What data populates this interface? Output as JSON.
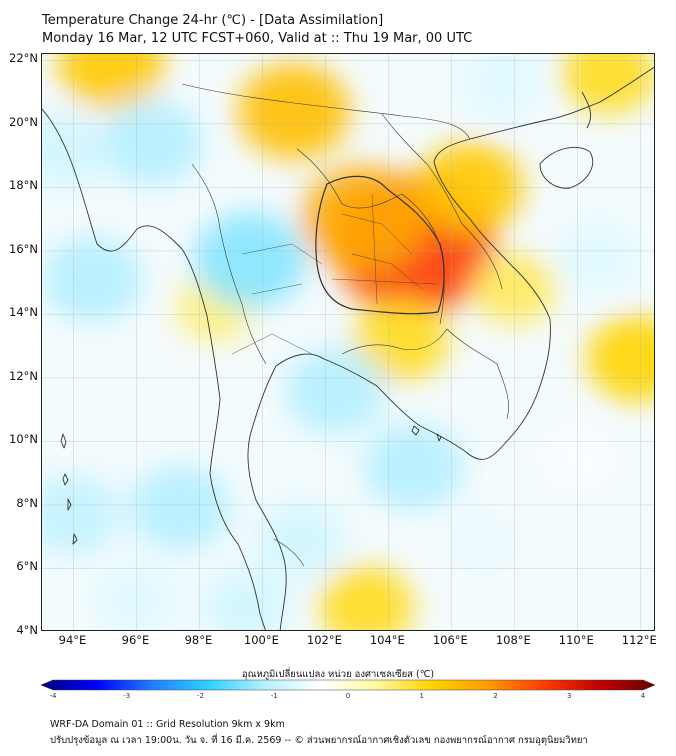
{
  "title": {
    "line1": "Temperature Change 24-hr (℃) - [Data Assimilation]",
    "line2": "Monday 16 Mar, 12 UTC FCST+060, Valid at :: Thu 19 Mar, 00 UTC"
  },
  "axes": {
    "lat_labels": [
      "22°N",
      "20°N",
      "18°N",
      "16°N",
      "14°N",
      "12°N",
      "10°N",
      "8°N",
      "6°N",
      "4°N"
    ],
    "lon_labels": [
      "94°E",
      "96°E",
      "98°E",
      "100°E",
      "102°E",
      "104°E",
      "106°E",
      "108°E",
      "110°E",
      "112°E"
    ],
    "lat_range": [
      4,
      22.2
    ],
    "lon_range": [
      93,
      112.5
    ]
  },
  "colorbar": {
    "title": "อุณหภูมิเปลี่ยนแปลง หน่วย องศาเซลเซียส (℃)",
    "tick_labels": [
      "-4",
      "-3",
      "-2",
      "-1",
      "0",
      "1",
      "2",
      "3",
      "4"
    ],
    "range": [
      -4,
      4
    ],
    "colors": [
      "#00007a",
      "#0000ff",
      "#1f7fff",
      "#2fd0ff",
      "#b4f0ff",
      "#ffffff",
      "#fff8a0",
      "#ffd400",
      "#ff9a00",
      "#ff3c00",
      "#c00000",
      "#6a0000"
    ]
  },
  "footer": {
    "line1": "WRF-DA Domain 01 :: Grid Resolution 9km x 9km",
    "line2": "ปรับปรุงข้อมูล ณ เวลา 19:00น. วัน จ. ที่ 16 มี.ค. 2569 -- © ส่วนพยากรณ์อากาศเชิงตัวเลข กองพยากรณ์อากาศ กรมอุตุนิยมวิทยา"
  },
  "field_blobs": [
    {
      "lon": 104.8,
      "lat": 16.2,
      "value": 1.9
    },
    {
      "lon": 103.2,
      "lat": 17.0,
      "value": 1.2
    },
    {
      "lon": 101.0,
      "lat": 20.4,
      "value": 1.0
    },
    {
      "lon": 106.6,
      "lat": 18.0,
      "value": 0.9
    },
    {
      "lon": 95.2,
      "lat": 21.9,
      "value": 0.9
    },
    {
      "lon": 111.0,
      "lat": 21.6,
      "value": 0.7
    },
    {
      "lon": 104.4,
      "lat": 13.2,
      "value": 0.7
    },
    {
      "lon": 108.0,
      "lat": 14.8,
      "value": 0.5
    },
    {
      "lon": 111.9,
      "lat": 12.6,
      "value": 0.8
    },
    {
      "lon": 98.5,
      "lat": 14.2,
      "value": 0.4
    },
    {
      "lon": 103.3,
      "lat": 4.8,
      "value": 0.7
    },
    {
      "lon": 99.6,
      "lat": 15.7,
      "value": -1.0
    },
    {
      "lon": 94.6,
      "lat": 15.1,
      "value": -0.8
    },
    {
      "lon": 96.5,
      "lat": 19.4,
      "value": -0.8
    },
    {
      "lon": 93.7,
      "lat": 19.2,
      "value": -0.6
    },
    {
      "lon": 102.3,
      "lat": 11.6,
      "value": -0.8
    },
    {
      "lon": 104.8,
      "lat": 9.2,
      "value": -0.8
    },
    {
      "lon": 97.4,
      "lat": 7.9,
      "value": -0.8
    },
    {
      "lon": 94.0,
      "lat": 7.7,
      "value": -0.7
    },
    {
      "lon": 101.2,
      "lat": 6.9,
      "value": -0.6
    },
    {
      "lon": 99.5,
      "lat": 4.8,
      "value": -0.6
    },
    {
      "lon": 110.6,
      "lat": 15.8,
      "value": -0.5
    },
    {
      "lon": 107.6,
      "lat": 21.3,
      "value": -0.5
    },
    {
      "lon": 96.0,
      "lat": 5.0,
      "value": -0.5
    },
    {
      "lon": 107.0,
      "lat": 6.8,
      "value": -0.4
    },
    {
      "lon": 110.0,
      "lat": 9.5,
      "value": -0.3
    }
  ]
}
